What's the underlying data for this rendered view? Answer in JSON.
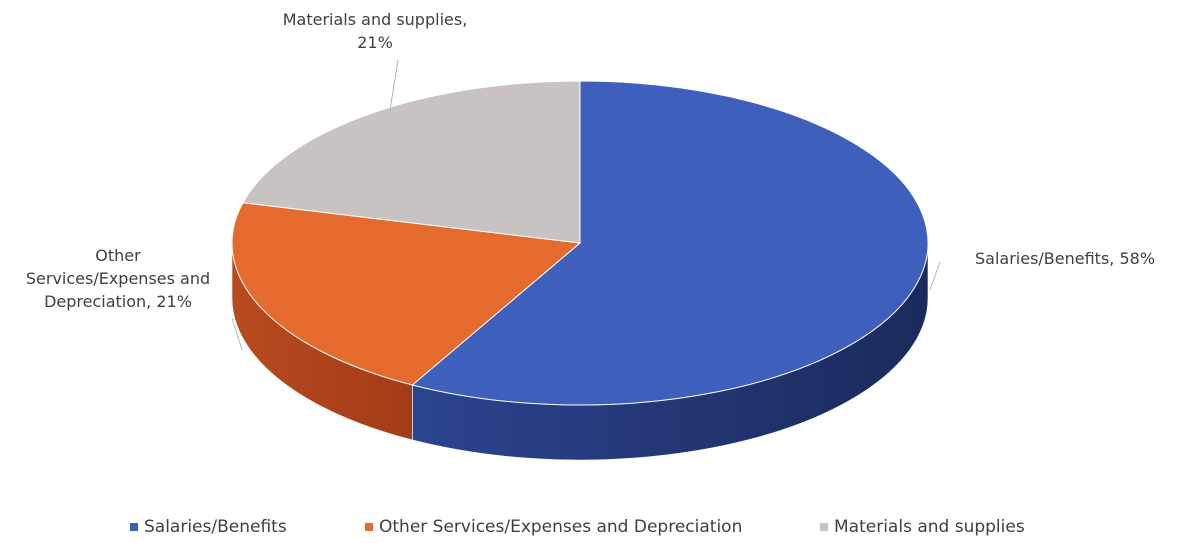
{
  "chart_data": {
    "type": "pie",
    "style": "3d",
    "categories": [
      "Salaries/Benefits",
      "Other Services/Expenses and Depreciation",
      "Materials and supplies"
    ],
    "values": [
      58,
      21,
      21
    ],
    "unit": "%",
    "colors": [
      "#3f5fbd",
      "#e56a2e",
      "#c9c2c2"
    ],
    "data_labels": [
      [
        "Salaries/Benefits, 58%"
      ],
      [
        "Other",
        "Services/Expenses and",
        "Depreciation, 21%"
      ],
      [
        "Materials and supplies,",
        "21%"
      ]
    ],
    "legend": {
      "position": "bottom",
      "entries": [
        "Salaries/Benefits",
        "Other Services/Expenses and Depreciation",
        "Materials and supplies"
      ]
    }
  }
}
